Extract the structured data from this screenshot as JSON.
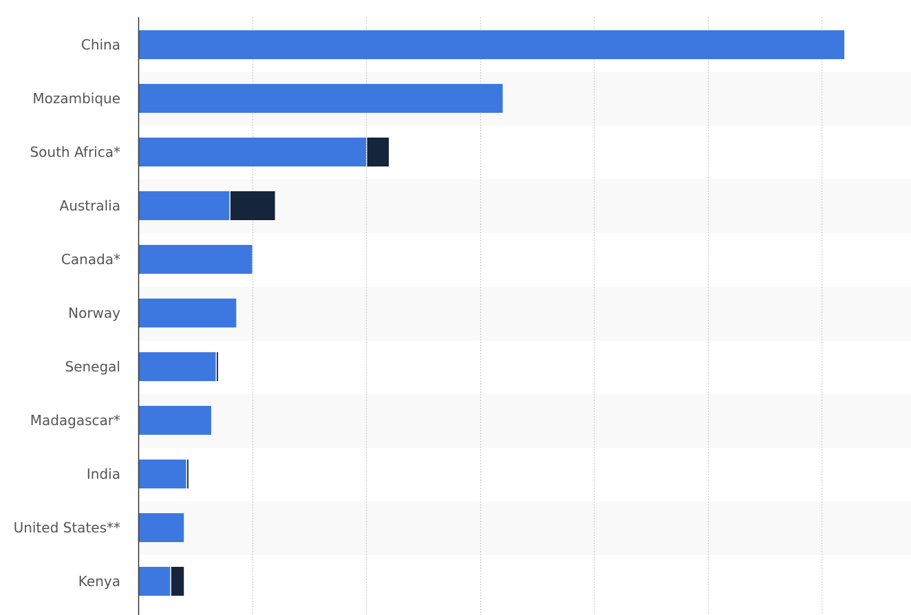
{
  "chart_data": {
    "type": "bar",
    "orientation": "horizontal",
    "stacked": true,
    "categories": [
      "China",
      "Mozambique",
      "South Africa*",
      "Australia",
      "Canada*",
      "Norway",
      "Senegal",
      "Madagascar*",
      "India",
      "United States**",
      "Kenya"
    ],
    "series": [
      {
        "color": "#3c78e0",
        "values": [
          310,
          160,
          100,
          40,
          50,
          43,
          34,
          32,
          21,
          20,
          14
        ]
      },
      {
        "color": "#14253c",
        "values": [
          0,
          0,
          10,
          20,
          0,
          0,
          1,
          0,
          1,
          0,
          6
        ]
      }
    ],
    "xlim": [
      0,
      340
    ],
    "grid": true,
    "gridline_every": 50,
    "legend": "none",
    "title": "",
    "xlabel": "",
    "ylabel": ""
  }
}
